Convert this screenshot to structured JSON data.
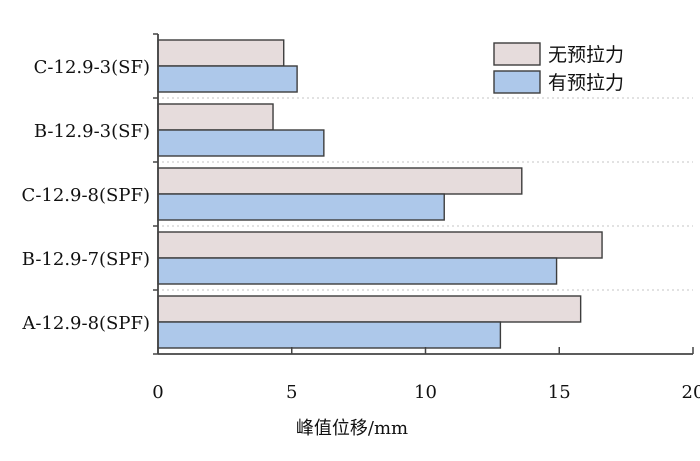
{
  "chart_data": {
    "type": "bar",
    "orientation": "horizontal",
    "categories": [
      "C-12.9-3(SF)",
      "B-12.9-3(SF)",
      "C-12.9-8(SPF)",
      "B-12.9-7(SPF)",
      "A-12.9-8(SPF)"
    ],
    "series": [
      {
        "name": "无预拉力",
        "values": [
          4.7,
          4.3,
          13.6,
          16.6,
          15.8
        ],
        "color": "#e6dcdc"
      },
      {
        "name": "有预拉力",
        "values": [
          5.2,
          6.2,
          10.7,
          14.9,
          12.8
        ],
        "color": "#adc8ea"
      }
    ],
    "xlabel": "峰值位移/mm",
    "ylabel": "",
    "xlim": [
      0,
      20
    ],
    "xticks": [
      0,
      5,
      10,
      15,
      20
    ],
    "grid": "dotted horizontal separators",
    "legend_position": "top-right",
    "bar_edge_color": "#3d3d3d"
  }
}
